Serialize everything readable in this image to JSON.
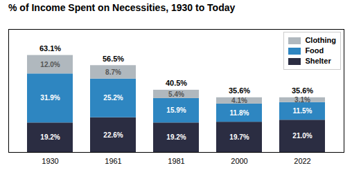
{
  "chart_data": {
    "type": "bar",
    "title": "% of Income Spent on Necessities, 1930 to Today",
    "categories": [
      "1930",
      "1961",
      "1981",
      "2000",
      "2022"
    ],
    "series": [
      {
        "name": "Shelter",
        "color": "#2b2d42",
        "values": [
          19.2,
          22.6,
          19.2,
          19.7,
          21.0
        ],
        "value_labels": [
          "19.2%",
          "22.6%",
          "19.2%",
          "19.7%",
          "21.0%"
        ]
      },
      {
        "name": "Food",
        "color": "#2e86c1",
        "values": [
          31.9,
          25.2,
          15.9,
          11.8,
          11.5
        ],
        "value_labels": [
          "31.9%",
          "25.2%",
          "15.9%",
          "11.8%",
          "11.5%"
        ]
      },
      {
        "name": "Clothing",
        "color": "#b0b8be",
        "values": [
          12.0,
          8.7,
          5.4,
          4.1,
          3.1
        ],
        "value_labels": [
          "12.0%",
          "8.7%",
          "5.4%",
          "4.1%",
          "3.1%"
        ]
      }
    ],
    "totals": [
      63.1,
      56.5,
      40.5,
      35.6,
      35.6
    ],
    "total_labels": [
      "63.1%",
      "56.5%",
      "40.5%",
      "35.6%",
      "35.6%"
    ],
    "stacked": true,
    "data_labels": true,
    "ylim": [
      0,
      80
    ],
    "yticks": [],
    "tick_labels": "x",
    "grid": false,
    "legend": "upper right"
  }
}
